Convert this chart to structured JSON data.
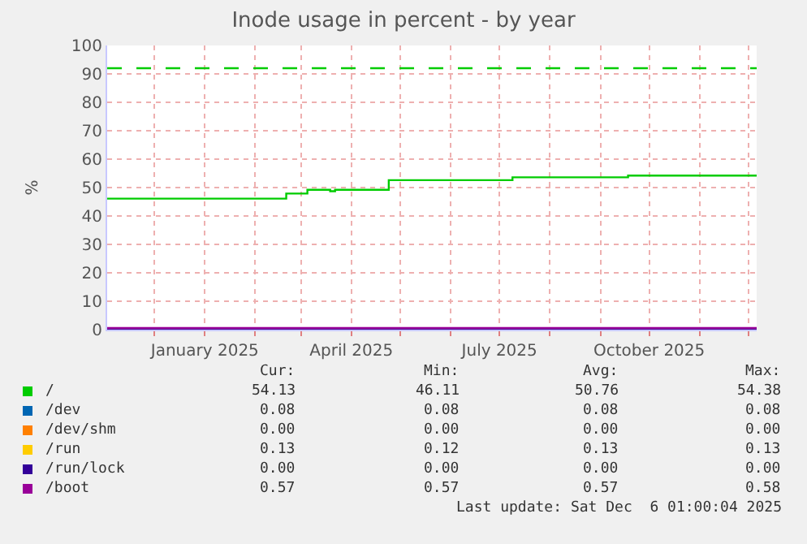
{
  "chart_data": {
    "type": "step",
    "title": "Inode usage in percent - by year",
    "ylabel": "%",
    "xlim": [
      "2024-11-02",
      "2025-12-06"
    ],
    "xticks": [
      {
        "value": "2024-12-01",
        "label": null
      },
      {
        "value": "2025-01-01",
        "label": "January 2025"
      },
      {
        "value": "2025-02-01",
        "label": null
      },
      {
        "value": "2025-03-01",
        "label": null
      },
      {
        "value": "2025-04-01",
        "label": "April 2025"
      },
      {
        "value": "2025-05-01",
        "label": null
      },
      {
        "value": "2025-06-01",
        "label": null
      },
      {
        "value": "2025-07-01",
        "label": "July 2025"
      },
      {
        "value": "2025-08-01",
        "label": null
      },
      {
        "value": "2025-09-01",
        "label": null
      },
      {
        "value": "2025-10-01",
        "label": "October 2025"
      },
      {
        "value": "2025-11-01",
        "label": null
      },
      {
        "value": "2025-12-01",
        "label": null
      }
    ],
    "ylim": [
      0,
      100
    ],
    "yticks": [
      0,
      10,
      20,
      30,
      40,
      50,
      60,
      70,
      80,
      90,
      100
    ],
    "grid": true,
    "legend": "bottom left",
    "series": [
      {
        "name": "/",
        "color": "#00cc00",
        "x": [
          "2024-11-02",
          "2025-02-20",
          "2025-03-05",
          "2025-03-19",
          "2025-03-22",
          "2025-04-24",
          "2025-07-09",
          "2025-09-18",
          "2025-12-06"
        ],
        "values": [
          46.1,
          47.9,
          49.2,
          48.7,
          49.2,
          52.6,
          53.6,
          54.2,
          54.2
        ]
      },
      {
        "name": "/dev",
        "color": "#0066b3",
        "values": [
          null
        ]
      },
      {
        "name": "/dev/shm",
        "color": "#ff8000",
        "values": [
          null
        ]
      },
      {
        "name": "/run",
        "color": "#ffcc00",
        "values": [
          null
        ]
      },
      {
        "name": "/run/lock",
        "color": "#330099",
        "x": [
          "2024-11-02",
          "2025-12-06"
        ],
        "values": [
          0,
          0
        ]
      },
      {
        "name": "/boot",
        "color": "#990099",
        "x": [
          "2024-11-02",
          "2025-12-06"
        ],
        "values": [
          0.57,
          0.57
        ]
      }
    ],
    "ref_lines": [
      {
        "axis": "y",
        "value": 92,
        "label": null,
        "color": "#00cc00",
        "line_style": "dashed"
      }
    ],
    "annotations": [
      "Cur:",
      "Min:",
      "Avg:",
      "Max:",
      "54.13",
      "46.11",
      "50.76",
      "54.38",
      "0.08",
      "0.08",
      "0.08",
      "0.08",
      "0.00",
      "0.00",
      "0.00",
      "0.00",
      "0.13",
      "0.12",
      "0.13",
      "0.13",
      "0.00",
      "0.00",
      "0.00",
      "0.00",
      "0.57",
      "0.57",
      "0.57",
      "0.58",
      "Last update: Sat Dec  6 01:00:04 2025"
    ]
  }
}
